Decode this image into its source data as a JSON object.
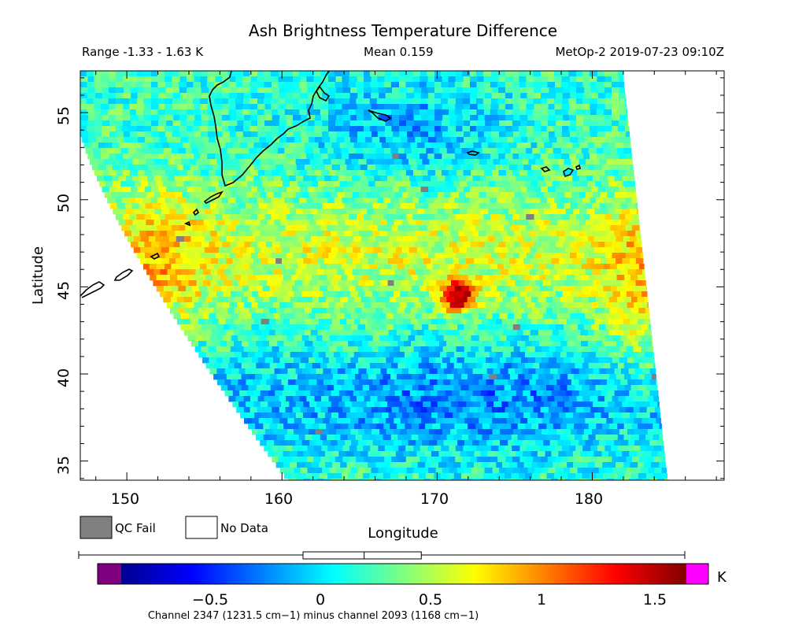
{
  "chart_data": {
    "type": "heatmap",
    "title": "Ash Brightness Temperature Difference",
    "subtitle_left": "Range -1.33 - 1.63 K",
    "subtitle_center": "Mean 0.159",
    "subtitle_right": "MetOp-2 2019-07-23 09:10Z",
    "xlabel": "Longitude",
    "ylabel": "Latitude",
    "xlim": [
      147,
      188.5
    ],
    "ylim": [
      33.9,
      57.4
    ],
    "xticks": [
      150,
      160,
      170,
      180
    ],
    "yticks": [
      35,
      40,
      45,
      50,
      55
    ],
    "xtick_labels": [
      "150",
      "160",
      "170",
      "180"
    ],
    "ytick_labels": [
      "35",
      "40",
      "45",
      "50",
      "55"
    ],
    "hotspot": {
      "lon": 171.3,
      "lat": 44.5,
      "peak_value": 1.63
    },
    "value_range": [
      -1.33,
      1.63
    ],
    "mean": 0.159,
    "colorbar": {
      "min": -0.95,
      "max": 1.63,
      "ticks": [
        -0.5,
        0,
        0.5,
        1,
        1.5
      ],
      "tick_labels": [
        "−0.5",
        "0",
        "0.5",
        "1",
        "1.5"
      ],
      "unit": "K",
      "caption": "Channel 2347 (1231.5 cm−1) minus channel 2093 (1168 cm−1)",
      "under_color": "#800080",
      "over_color": "#ff00ff"
    },
    "legend": [
      {
        "label": "QC Fail",
        "color": "#808080"
      },
      {
        "label": "No Data",
        "color": "#ffffff"
      }
    ],
    "box_plot": {
      "q1": -0.12,
      "median": 0.159,
      "q3": 0.42,
      "whisker_low": -1.33,
      "whisker_high": 1.63
    },
    "grid": false
  }
}
